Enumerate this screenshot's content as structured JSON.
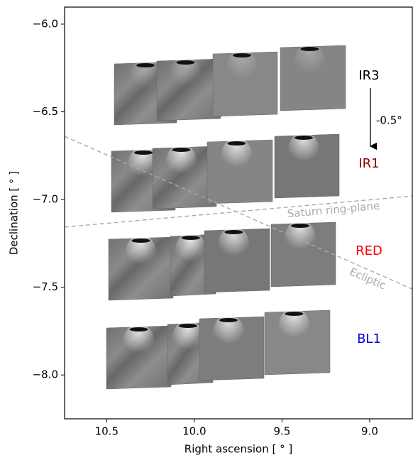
{
  "chart_data": {
    "type": "line",
    "xlabel": "Right ascension [ ° ]",
    "ylabel": "Declination [ ° ]",
    "xlim": [
      10.74,
      8.757
    ],
    "ylim": [
      -8.25,
      -5.903
    ],
    "xticks": [
      10.5,
      {
        "value": 10,
        "label": "10.0"
      },
      9.5,
      {
        "value": 9,
        "label": "9.0"
      }
    ],
    "yticks": [
      {
        "value": -6,
        "label": "−6.0"
      },
      {
        "value": -6.5,
        "label": "−6.5"
      },
      {
        "value": -7,
        "label": "−7.0"
      },
      {
        "value": -7.5,
        "label": "−7.5"
      },
      {
        "value": -8,
        "label": "−8.0"
      }
    ],
    "series": [
      {
        "name": "Saturn ring-plane",
        "color": "#aaaaaa",
        "x": [
          10.74,
          8.757
        ],
        "values": [
          -7.157,
          -6.98
        ]
      },
      {
        "name": "Ecliptic",
        "color": "#aaaaaa",
        "x": [
          10.74,
          8.757
        ],
        "values": [
          -6.64,
          -7.51
        ]
      }
    ],
    "annotations": [
      {
        "text": "IR3",
        "color": "#000000"
      },
      {
        "text": "IR1",
        "color": "#8b0000"
      },
      {
        "text": "RED",
        "color": "#ff0000"
      },
      {
        "text": "BL1",
        "color": "#0000cc"
      },
      {
        "text": "-0.5°",
        "color": "#000000"
      }
    ]
  }
}
